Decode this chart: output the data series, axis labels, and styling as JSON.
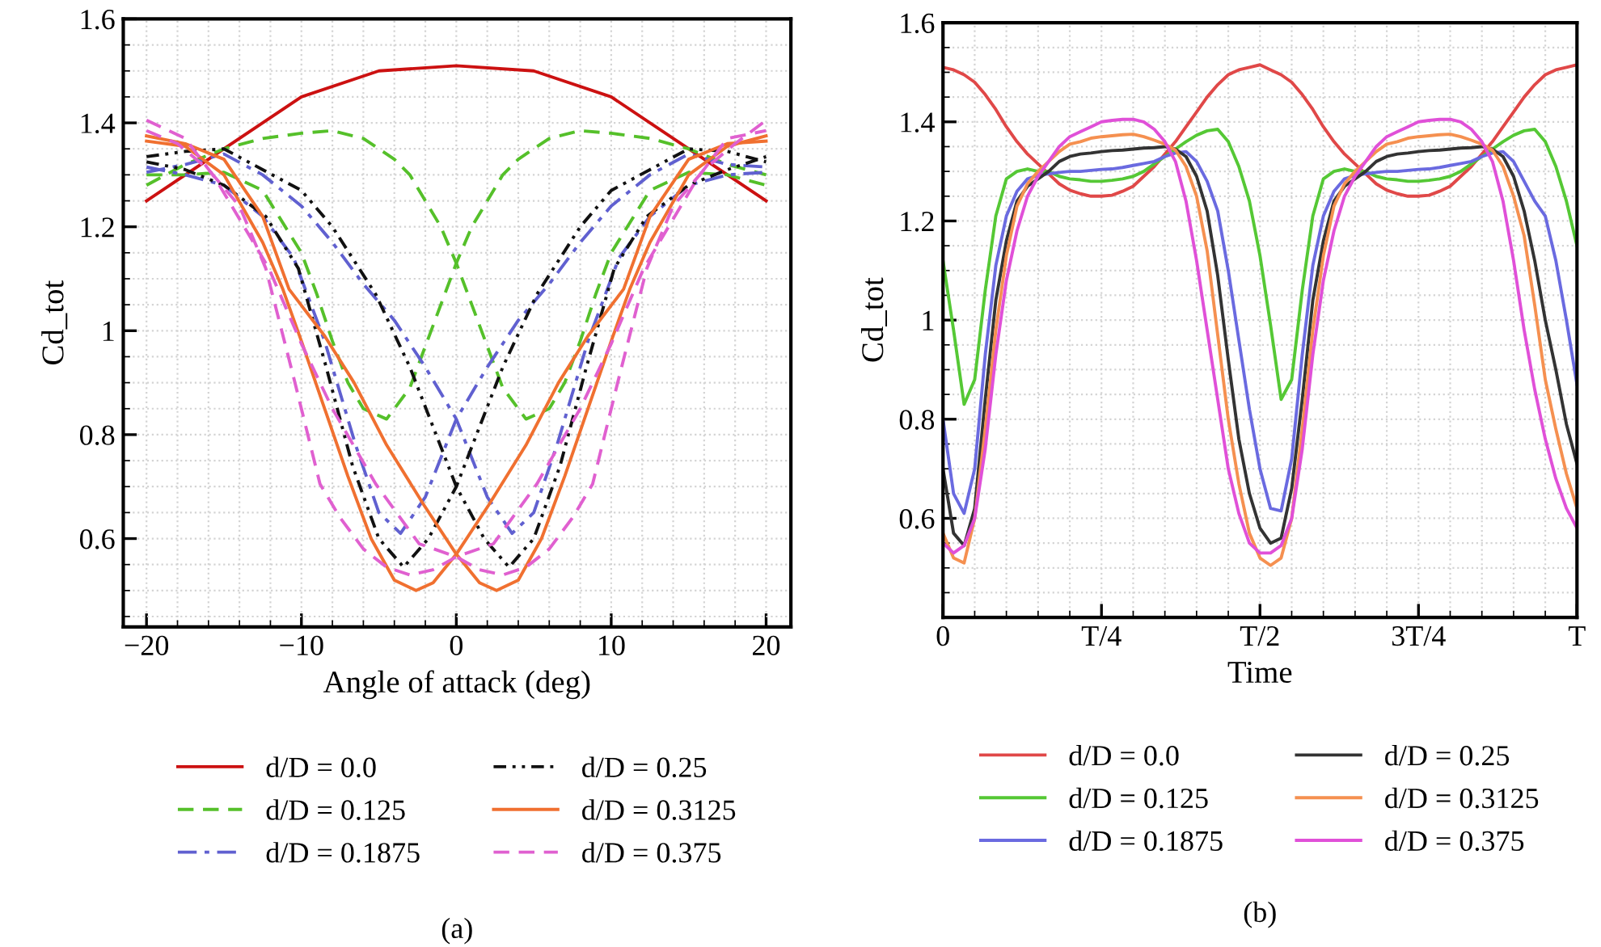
{
  "chart_data": [
    {
      "type": "line",
      "xlabel": "Angle of attack (deg)",
      "ylabel": "Cd_tot",
      "xlim": [
        -21.5,
        21.6
      ],
      "ylim": [
        0.43,
        1.6
      ],
      "xticks": [
        {
          "value": -20,
          "label": "−20"
        },
        {
          "value": -10,
          "label": "−10"
        },
        0,
        10,
        20
      ],
      "yticks": [
        0.6,
        0.8,
        1,
        1.2,
        1.4,
        1.6
      ],
      "grid": true,
      "legend": "bottom",
      "annotations": [
        "(a)"
      ],
      "series": [
        {
          "name": "d/D = 0.0",
          "color": "#cc1111",
          "line_style": "solid",
          "x": [
            -20,
            -15,
            -10,
            -5,
            0,
            5,
            10,
            15,
            20
          ],
          "values": [
            1.25,
            1.35,
            1.45,
            1.5,
            1.51,
            1.5,
            1.45,
            1.35,
            1.25
          ]
        },
        {
          "name": "d/D = 0.125",
          "color": "#55c02a",
          "line_style": "dashed",
          "x": [
            -20,
            -17.5,
            -15,
            -12.5,
            -10,
            -8,
            -6,
            -4,
            -3,
            -2,
            -1,
            0,
            1,
            2,
            3,
            4.5,
            6,
            7,
            8,
            9,
            10,
            12.5,
            15,
            17.5,
            20
          ],
          "values": [
            1.28,
            1.32,
            1.35,
            1.37,
            1.38,
            1.385,
            1.37,
            1.33,
            1.3,
            1.25,
            1.2,
            1.13,
            1.05,
            0.97,
            0.89,
            0.83,
            0.85,
            0.9,
            0.98,
            1.07,
            1.15,
            1.27,
            1.305,
            1.3,
            1.28
          ]
        },
        {
          "color": "#55c02a",
          "line_style": "dashed",
          "x": [
            -20,
            -17.5,
            -15,
            -12.5,
            -10,
            -9,
            -8,
            -7,
            -6,
            -4.5,
            -3,
            -2,
            -1,
            0,
            1,
            2,
            3,
            4,
            6,
            8,
            10,
            12.5,
            15,
            17.5,
            20
          ],
          "values": [
            1.3,
            1.3,
            1.305,
            1.27,
            1.15,
            1.07,
            0.98,
            0.9,
            0.85,
            0.83,
            0.89,
            0.97,
            1.05,
            1.13,
            1.2,
            1.25,
            1.3,
            1.33,
            1.37,
            1.385,
            1.38,
            1.37,
            1.35,
            1.32,
            1.3
          ]
        },
        {
          "name": "d/D = 0.1875",
          "color": "#6060d0",
          "line_style": "dashdot",
          "x": [
            -20,
            -17.5,
            -15,
            -12.5,
            -10,
            -8,
            -6,
            -4,
            -2,
            0,
            2,
            3.6,
            5,
            6.5,
            8.5,
            10.5,
            12.5,
            15,
            17.5,
            20
          ],
          "values": [
            1.305,
            1.32,
            1.34,
            1.3,
            1.24,
            1.17,
            1.09,
            1.02,
            0.93,
            0.83,
            0.68,
            0.61,
            0.65,
            0.78,
            0.98,
            1.14,
            1.22,
            1.28,
            1.3,
            1.305
          ]
        },
        {
          "color": "#6060d0",
          "line_style": "dashdot",
          "x": [
            -20,
            -17.5,
            -15,
            -12.5,
            -10.5,
            -8.5,
            -6.5,
            -5,
            -3.6,
            -2,
            0,
            2,
            4,
            6,
            8,
            10,
            12.5,
            15,
            17.5,
            20
          ],
          "values": [
            1.315,
            1.3,
            1.28,
            1.22,
            1.14,
            0.98,
            0.78,
            0.65,
            0.61,
            0.68,
            0.83,
            0.93,
            1.02,
            1.09,
            1.17,
            1.24,
            1.3,
            1.34,
            1.32,
            1.315
          ]
        },
        {
          "name": "d/D = 0.25",
          "color": "#111111",
          "line_style": "dashdotdot",
          "x": [
            -20,
            -17.5,
            -15,
            -12.5,
            -10,
            -8,
            -5.2,
            -3,
            0,
            1.8,
            3.4,
            5,
            6.7,
            8.4,
            10.2,
            12.3,
            15,
            17.5,
            20
          ],
          "values": [
            1.335,
            1.345,
            1.35,
            1.31,
            1.27,
            1.2,
            1.07,
            0.93,
            0.7,
            0.6,
            0.545,
            0.6,
            0.74,
            0.93,
            1.12,
            1.22,
            1.28,
            1.31,
            1.335
          ]
        },
        {
          "color": "#111111",
          "line_style": "dashdotdot",
          "x": [
            -20,
            -17.5,
            -15,
            -12.3,
            -10.2,
            -8.4,
            -6.7,
            -5,
            -3.4,
            -1.8,
            0,
            3,
            5.2,
            8,
            10,
            12.5,
            15,
            17.5,
            20
          ],
          "values": [
            1.325,
            1.31,
            1.28,
            1.22,
            1.12,
            0.93,
            0.74,
            0.6,
            0.545,
            0.6,
            0.7,
            0.93,
            1.07,
            1.2,
            1.27,
            1.31,
            1.35,
            1.345,
            1.325
          ]
        },
        {
          "name": "d/D = 0.3125",
          "color": "#f07030",
          "line_style": "solid",
          "x": [
            -20,
            -17.5,
            -15,
            -12.5,
            -10.8,
            -8.5,
            -6.6,
            -4.5,
            -2.1,
            0,
            1.5,
            2.6,
            4,
            5.5,
            7,
            8.5,
            10,
            11.2,
            12.5,
            15,
            17.5,
            20
          ],
          "values": [
            1.375,
            1.36,
            1.33,
            1.22,
            1.08,
            0.99,
            0.9,
            0.78,
            0.665,
            0.57,
            0.515,
            0.5,
            0.52,
            0.6,
            0.72,
            0.85,
            0.98,
            1.08,
            1.17,
            1.3,
            1.355,
            1.375
          ]
        },
        {
          "color": "#f07030",
          "line_style": "solid",
          "x": [
            -20,
            -17.5,
            -15,
            -12.5,
            -11.2,
            -10,
            -8.5,
            -7,
            -5.5,
            -4,
            -2.6,
            -1.5,
            0,
            2.1,
            4.5,
            6.6,
            8.5,
            10.8,
            12.5,
            15,
            17.5,
            20
          ],
          "values": [
            1.365,
            1.355,
            1.3,
            1.17,
            1.08,
            0.98,
            0.85,
            0.72,
            0.6,
            0.52,
            0.5,
            0.515,
            0.57,
            0.665,
            0.78,
            0.9,
            0.99,
            1.08,
            1.22,
            1.33,
            1.36,
            1.365
          ]
        },
        {
          "name": "d/D = 0.375",
          "color": "#e060d0",
          "line_style": "dashed",
          "x": [
            -20,
            -17.5,
            -15.6,
            -12.1,
            -10,
            -8,
            -5.2,
            -2.4,
            0,
            1.5,
            3,
            4.5,
            6,
            7.5,
            8.8,
            10.5,
            12.3,
            14,
            16,
            18,
            20
          ],
          "values": [
            1.405,
            1.37,
            1.295,
            1.12,
            0.975,
            0.85,
            0.705,
            0.59,
            0.565,
            0.54,
            0.53,
            0.545,
            0.58,
            0.64,
            0.705,
            0.91,
            1.12,
            1.24,
            1.31,
            1.36,
            1.405
          ]
        },
        {
          "color": "#e060d0",
          "line_style": "dashed",
          "x": [
            -20,
            -18,
            -16,
            -14,
            -12.3,
            -10.5,
            -8.8,
            -7.5,
            -6,
            -4.5,
            -3,
            -1.5,
            0,
            2.4,
            5.2,
            8,
            10,
            12.1,
            15.6,
            17.5,
            20
          ],
          "values": [
            1.385,
            1.36,
            1.31,
            1.24,
            1.12,
            0.91,
            0.705,
            0.64,
            0.58,
            0.545,
            0.53,
            0.54,
            0.565,
            0.59,
            0.705,
            0.85,
            0.975,
            1.12,
            1.295,
            1.37,
            1.385
          ]
        }
      ]
    },
    {
      "type": "line",
      "xlabel": "Time",
      "ylabel": "Cd_tot",
      "ylim": [
        0.4,
        1.6
      ],
      "categories": [
        "0",
        null,
        null,
        null,
        null,
        null,
        null,
        null,
        null,
        null,
        null,
        null,
        null,
        null,
        null,
        "T/4",
        null,
        null,
        null,
        null,
        null,
        null,
        null,
        null,
        null,
        null,
        null,
        null,
        null,
        null,
        "T/2",
        null,
        null,
        null,
        null,
        null,
        null,
        null,
        null,
        null,
        null,
        null,
        null,
        null,
        null,
        "3T/4",
        null,
        null,
        null,
        null,
        null,
        null,
        null,
        null,
        null,
        null,
        null,
        null,
        null,
        null,
        "T"
      ],
      "yticks": [
        0.6,
        0.8,
        1,
        1.2,
        1.4,
        1.6
      ],
      "grid": true,
      "legend": "bottom",
      "line_style": "solid",
      "annotations": [
        "(b)"
      ],
      "series": [
        {
          "name": "d/D = 0.0",
          "color": "#e04848",
          "values": [
            1.51,
            1.505,
            1.495,
            1.48,
            1.455,
            1.425,
            1.39,
            1.36,
            1.335,
            1.315,
            1.295,
            1.275,
            1.262,
            1.255,
            1.25,
            1.25,
            1.252,
            1.26,
            1.27,
            1.29,
            1.31,
            1.335,
            1.36,
            1.39,
            1.42,
            1.45,
            1.475,
            1.495,
            1.505,
            1.51,
            1.515,
            1.505,
            1.495,
            1.48,
            1.455,
            1.425,
            1.39,
            1.36,
            1.335,
            1.315,
            1.295,
            1.275,
            1.262,
            1.255,
            1.25,
            1.25,
            1.252,
            1.26,
            1.27,
            1.29,
            1.31,
            1.335,
            1.36,
            1.39,
            1.42,
            1.45,
            1.475,
            1.495,
            1.505,
            1.51,
            1.515
          ]
        },
        {
          "name": "d/D = 0.125",
          "color": "#55c835",
          "values": [
            1.12,
            0.98,
            0.83,
            0.88,
            1.06,
            1.21,
            1.285,
            1.3,
            1.305,
            1.3,
            1.3,
            1.29,
            1.285,
            1.283,
            1.28,
            1.28,
            1.282,
            1.285,
            1.29,
            1.3,
            1.315,
            1.33,
            1.345,
            1.36,
            1.373,
            1.382,
            1.385,
            1.36,
            1.31,
            1.24,
            1.13,
            0.99,
            0.84,
            0.88,
            1.06,
            1.21,
            1.285,
            1.3,
            1.305,
            1.3,
            1.3,
            1.29,
            1.285,
            1.283,
            1.28,
            1.28,
            1.282,
            1.285,
            1.29,
            1.3,
            1.315,
            1.33,
            1.345,
            1.36,
            1.373,
            1.382,
            1.385,
            1.36,
            1.31,
            1.24,
            1.15
          ]
        },
        {
          "name": "d/D = 0.1875",
          "color": "#6a6ae0",
          "values": [
            0.8,
            0.65,
            0.61,
            0.7,
            0.93,
            1.11,
            1.21,
            1.26,
            1.285,
            1.292,
            1.295,
            1.298,
            1.3,
            1.3,
            1.302,
            1.304,
            1.305,
            1.308,
            1.312,
            1.316,
            1.32,
            1.33,
            1.337,
            1.34,
            1.32,
            1.28,
            1.22,
            1.1,
            0.96,
            0.82,
            0.7,
            0.62,
            0.615,
            0.72,
            0.93,
            1.11,
            1.21,
            1.26,
            1.285,
            1.292,
            1.295,
            1.298,
            1.3,
            1.3,
            1.302,
            1.304,
            1.305,
            1.308,
            1.312,
            1.316,
            1.32,
            1.33,
            1.337,
            1.34,
            1.32,
            1.28,
            1.24,
            1.21,
            1.12,
            1.0,
            0.87
          ]
        },
        {
          "name": "d/D = 0.25",
          "color": "#333333",
          "values": [
            0.7,
            0.57,
            0.545,
            0.62,
            0.84,
            1.04,
            1.16,
            1.24,
            1.27,
            1.285,
            1.3,
            1.32,
            1.33,
            1.335,
            1.337,
            1.34,
            1.342,
            1.343,
            1.345,
            1.347,
            1.348,
            1.35,
            1.345,
            1.33,
            1.29,
            1.22,
            1.09,
            0.92,
            0.76,
            0.65,
            0.58,
            0.55,
            0.56,
            0.66,
            0.84,
            1.04,
            1.16,
            1.24,
            1.27,
            1.285,
            1.3,
            1.32,
            1.33,
            1.335,
            1.337,
            1.34,
            1.342,
            1.343,
            1.345,
            1.347,
            1.348,
            1.35,
            1.345,
            1.33,
            1.29,
            1.22,
            1.12,
            1.0,
            0.9,
            0.79,
            0.71
          ]
        },
        {
          "name": "d/D = 0.3125",
          "color": "#f59050",
          "values": [
            0.57,
            0.52,
            0.51,
            0.6,
            0.78,
            0.98,
            1.13,
            1.23,
            1.275,
            1.3,
            1.32,
            1.34,
            1.355,
            1.36,
            1.367,
            1.37,
            1.372,
            1.374,
            1.375,
            1.37,
            1.363,
            1.355,
            1.343,
            1.31,
            1.25,
            1.14,
            0.97,
            0.8,
            0.67,
            0.57,
            0.52,
            0.505,
            0.52,
            0.6,
            0.78,
            0.98,
            1.13,
            1.23,
            1.275,
            1.3,
            1.32,
            1.34,
            1.355,
            1.36,
            1.367,
            1.37,
            1.372,
            1.374,
            1.375,
            1.37,
            1.363,
            1.355,
            1.343,
            1.31,
            1.25,
            1.17,
            1.03,
            0.88,
            0.78,
            0.69,
            0.62
          ]
        },
        {
          "name": "d/D = 0.375",
          "color": "#e050d8",
          "values": [
            0.55,
            0.53,
            0.545,
            0.6,
            0.74,
            0.93,
            1.08,
            1.18,
            1.25,
            1.29,
            1.32,
            1.35,
            1.37,
            1.38,
            1.39,
            1.4,
            1.403,
            1.405,
            1.405,
            1.4,
            1.385,
            1.36,
            1.32,
            1.24,
            1.12,
            0.98,
            0.84,
            0.7,
            0.61,
            0.55,
            0.53,
            0.53,
            0.545,
            0.6,
            0.74,
            0.93,
            1.08,
            1.18,
            1.25,
            1.29,
            1.32,
            1.35,
            1.37,
            1.38,
            1.39,
            1.4,
            1.403,
            1.405,
            1.405,
            1.4,
            1.385,
            1.36,
            1.32,
            1.24,
            1.12,
            0.98,
            0.86,
            0.76,
            0.68,
            0.62,
            0.58
          ]
        }
      ]
    }
  ]
}
